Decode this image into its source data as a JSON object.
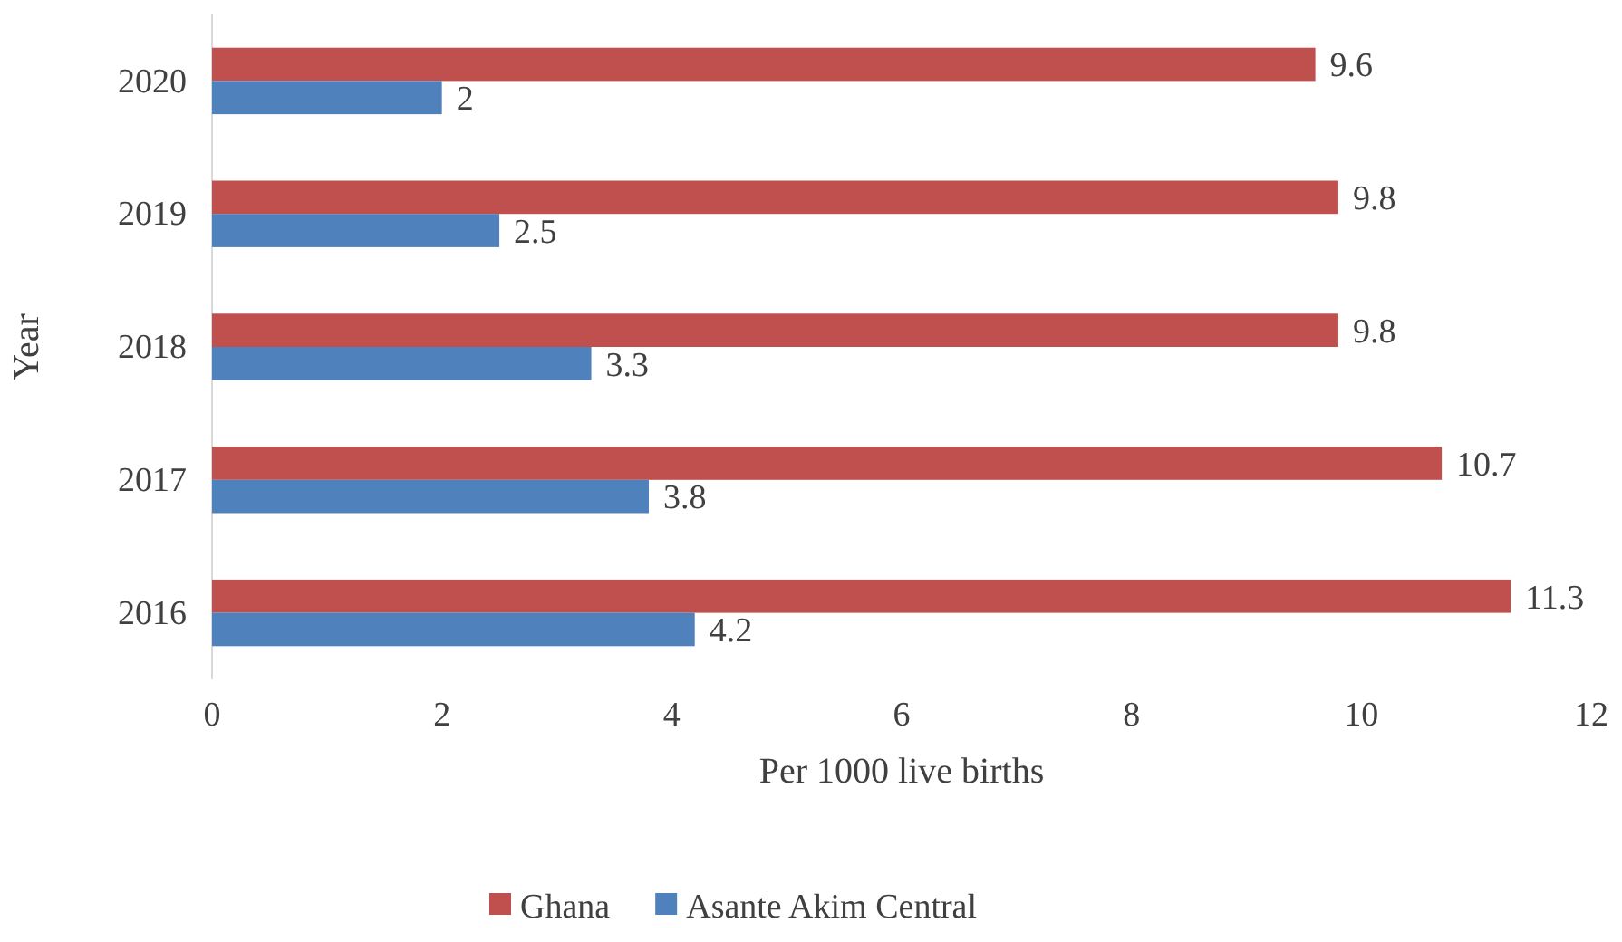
{
  "chart_data": {
    "type": "bar",
    "orientation": "horizontal",
    "xlabel": "Per 1000 live births",
    "ylabel": "Year",
    "categories": [
      "2020",
      "2019",
      "2018",
      "2017",
      "2016"
    ],
    "series": [
      {
        "name": "Ghana",
        "color": "#c0504d",
        "values": [
          9.6,
          9.8,
          9.8,
          10.7,
          11.3
        ]
      },
      {
        "name": "Asante Akim Central",
        "color": "#4f81bd",
        "values": [
          2,
          2.5,
          3.3,
          3.8,
          4.2
        ]
      }
    ],
    "xlim": [
      0,
      12
    ],
    "xticks": [
      0,
      2,
      4,
      6,
      8,
      10,
      12
    ],
    "data_labels": true,
    "legend": "bottom",
    "grid": false
  }
}
